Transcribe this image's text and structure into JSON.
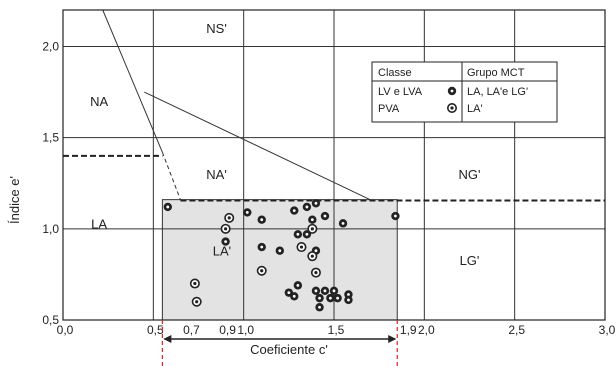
{
  "chart_data": {
    "type": "scatter",
    "xlabel": "Coeficiente c'",
    "ylabel": "Índice e'",
    "xlim": [
      0.0,
      3.0
    ],
    "ylim": [
      0.5,
      2.2
    ],
    "x_ticks": [
      "0,0",
      "0,5",
      "0,7",
      "0,9",
      "1,0",
      "1,5",
      "1,9",
      "2,0",
      "2,5",
      "3,0"
    ],
    "y_ticks": [
      "0,5",
      "1,0",
      "1,5",
      "2,0"
    ],
    "grid": true,
    "region_labels": [
      "NS'",
      "NA",
      "NA'",
      "NG'",
      "LA",
      "LA'",
      "LG'"
    ],
    "shaded_region": {
      "x": [
        0.55,
        1.85
      ],
      "y": [
        0.5,
        1.16
      ]
    },
    "legend": {
      "placement": "top-right",
      "header_left": "Classe",
      "header_right": "Grupo MCT",
      "rows": [
        {
          "classe": "LV e LVA",
          "grupo": "LA, LA'e LG'",
          "marker": "filled-circle"
        },
        {
          "classe": "PVA",
          "grupo": "LA'",
          "marker": "dotted-circle"
        }
      ]
    },
    "range_label": "",
    "series": [
      {
        "name": "LV e LVA",
        "marker": "filled-circle",
        "points": [
          [
            0.58,
            1.12
          ],
          [
            1.02,
            1.09
          ],
          [
            1.1,
            1.05
          ],
          [
            1.28,
            1.1
          ],
          [
            1.35,
            1.12
          ],
          [
            1.38,
            1.05
          ],
          [
            1.4,
            1.14
          ],
          [
            1.45,
            1.07
          ],
          [
            1.55,
            1.03
          ],
          [
            1.3,
            0.97
          ],
          [
            1.35,
            0.97
          ],
          [
            1.1,
            0.9
          ],
          [
            1.2,
            0.88
          ],
          [
            1.4,
            0.88
          ],
          [
            0.9,
            0.93
          ],
          [
            1.3,
            0.69
          ],
          [
            1.25,
            0.65
          ],
          [
            1.28,
            0.63
          ],
          [
            1.4,
            0.66
          ],
          [
            1.45,
            0.66
          ],
          [
            1.5,
            0.66
          ],
          [
            1.58,
            0.64
          ],
          [
            1.58,
            0.61
          ],
          [
            1.42,
            0.62
          ],
          [
            1.48,
            0.62
          ],
          [
            1.52,
            0.62
          ],
          [
            1.42,
            0.57
          ],
          [
            1.84,
            1.07
          ]
        ]
      },
      {
        "name": "PVA",
        "marker": "dotted-circle",
        "points": [
          [
            0.9,
            1.0
          ],
          [
            1.1,
            0.77
          ],
          [
            1.4,
            0.76
          ],
          [
            1.32,
            0.9
          ],
          [
            1.38,
            0.85
          ],
          [
            0.73,
            0.7
          ],
          [
            0.74,
            0.6
          ],
          [
            0.92,
            1.06
          ],
          [
            1.38,
            1.0
          ]
        ]
      }
    ]
  }
}
